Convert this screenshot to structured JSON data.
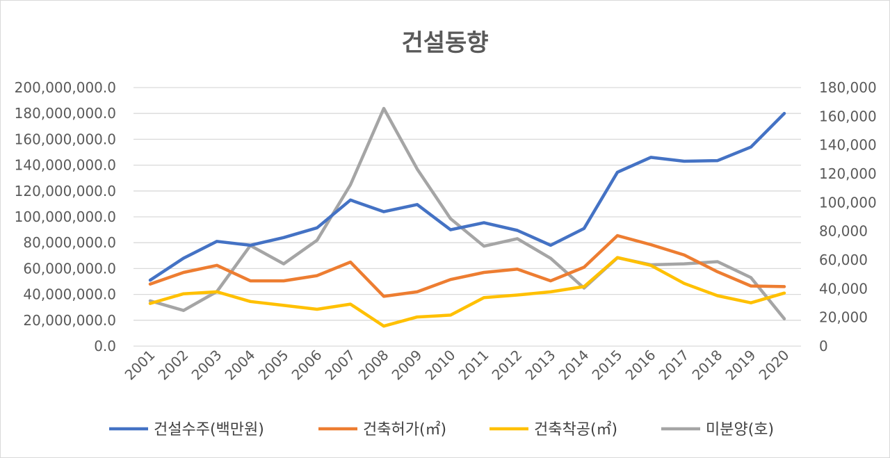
{
  "chart_data": {
    "type": "line",
    "title": "건설동향",
    "categories": [
      "2001",
      "2002",
      "2003",
      "2004",
      "2005",
      "2006",
      "2007",
      "2008",
      "2009",
      "2010",
      "2011",
      "2012",
      "2013",
      "2014",
      "2015",
      "2016",
      "2017",
      "2018",
      "2019",
      "2020"
    ],
    "y_left": {
      "min": 0,
      "max": 200000000,
      "step": 20000000,
      "tick_labels": [
        "0.0",
        "20,000,000.0",
        "40,000,000.0",
        "60,000,000.0",
        "80,000,000.0",
        "100,000,000.0",
        "120,000,000.0",
        "140,000,000.0",
        "160,000,000.0",
        "180,000,000.0",
        "200,000,000.0"
      ]
    },
    "y_right": {
      "min": 0,
      "max": 180000,
      "step": 20000,
      "tick_labels": [
        "0",
        "20,000",
        "40,000",
        "60,000",
        "80,000",
        "100,000",
        "120,000",
        "140,000",
        "160,000",
        "180,000"
      ]
    },
    "grid": true,
    "legend_position": "bottom",
    "series": [
      {
        "name": "건설수주(백만원)",
        "color": "#4472C4",
        "axis": "left",
        "values": [
          51000000,
          68000000,
          81000000,
          78000000,
          84000000,
          91500000,
          113000000,
          104000000,
          109500000,
          90000000,
          95500000,
          89500000,
          78000000,
          91000000,
          134500000,
          146000000,
          143000000,
          143500000,
          154000000,
          180000000
        ]
      },
      {
        "name": "건축허가(㎡)",
        "color": "#ED7D31",
        "axis": "left",
        "values": [
          48000000,
          57000000,
          62500000,
          50500000,
          50500000,
          54500000,
          65000000,
          38500000,
          42000000,
          51500000,
          57000000,
          59500000,
          50500000,
          61000000,
          85500000,
          78500000,
          70500000,
          57500000,
          46500000,
          46000000
        ]
      },
      {
        "name": "건축착공(㎡)",
        "color": "#FFC000",
        "axis": "left",
        "values": [
          33000000,
          40500000,
          42000000,
          34500000,
          31500000,
          28500000,
          32500000,
          15500000,
          22500000,
          24000000,
          37500000,
          39500000,
          42000000,
          46000000,
          68500000,
          62500000,
          48500000,
          39000000,
          33500000,
          41000000
        ]
      },
      {
        "name": "미분양(호)",
        "color": "#A5A5A5",
        "axis": "right",
        "values": [
          31500,
          24800,
          38000,
          70000,
          57300,
          73700,
          112300,
          165500,
          123300,
          88700,
          69600,
          74800,
          61100,
          40400,
          61500,
          56600,
          57300,
          58800,
          47700,
          19000
        ]
      }
    ]
  }
}
